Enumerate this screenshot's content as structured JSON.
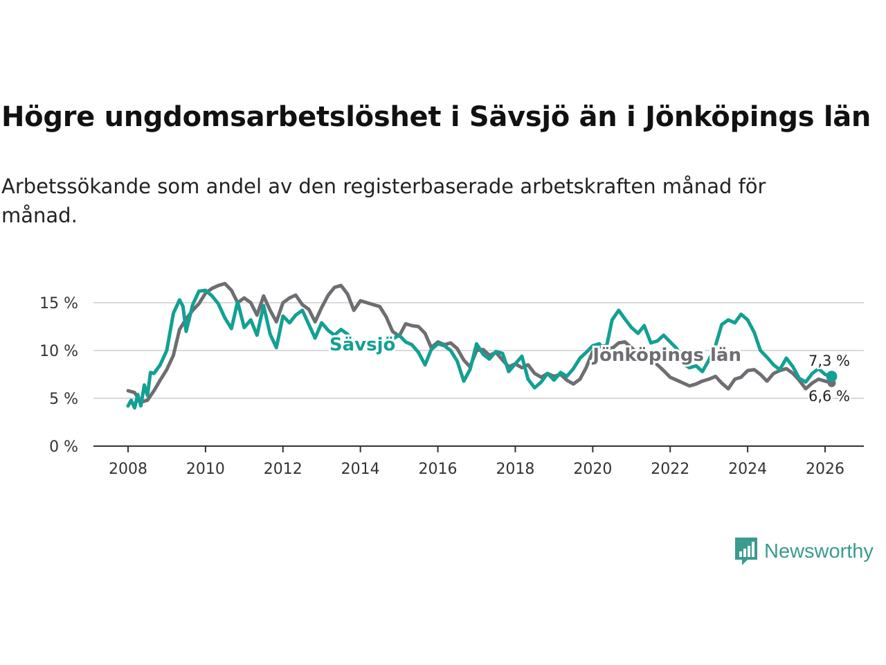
{
  "title": "Högre ungdomsarbetslöshet i Sävsjö än i Jönköpings län",
  "subtitle": "Arbetssökande som andel av den registerbaserade arbetskraften månad för månad.",
  "brand": {
    "name": "Newsworthy",
    "color": "#3a9b8e",
    "icon": "bar-chart-icon"
  },
  "chart_data": {
    "type": "line",
    "xlim": [
      2008,
      2026.6
    ],
    "ylim": [
      0,
      17.5
    ],
    "x_ticks": [
      2008,
      2010,
      2012,
      2014,
      2016,
      2018,
      2020,
      2022,
      2024,
      2026
    ],
    "x_tick_labels": [
      "2008",
      "2010",
      "2012",
      "2014",
      "2016",
      "2018",
      "2020",
      "2022",
      "2024",
      "2026"
    ],
    "y_ticks": [
      0,
      5,
      10,
      15
    ],
    "y_tick_labels": [
      "0 %",
      "5 %",
      "10 %",
      "15 %"
    ],
    "grid": true,
    "series": [
      {
        "name": "Jönköpings län",
        "color": "#6e6d72",
        "end_label": "6,6 %",
        "points": [
          [
            2008.0,
            5.8
          ],
          [
            2008.17,
            5.6
          ],
          [
            2008.33,
            4.6
          ],
          [
            2008.5,
            4.8
          ],
          [
            2008.67,
            5.8
          ],
          [
            2008.83,
            6.9
          ],
          [
            2009.0,
            8.0
          ],
          [
            2009.17,
            9.5
          ],
          [
            2009.33,
            12.2
          ],
          [
            2009.5,
            13.3
          ],
          [
            2009.67,
            14.2
          ],
          [
            2009.83,
            14.9
          ],
          [
            2010.0,
            16.0
          ],
          [
            2010.17,
            16.5
          ],
          [
            2010.33,
            16.8
          ],
          [
            2010.5,
            17.0
          ],
          [
            2010.67,
            16.3
          ],
          [
            2010.83,
            15.0
          ],
          [
            2011.0,
            15.5
          ],
          [
            2011.17,
            15.0
          ],
          [
            2011.33,
            13.7
          ],
          [
            2011.5,
            15.7
          ],
          [
            2011.67,
            14.2
          ],
          [
            2011.83,
            13.0
          ],
          [
            2012.0,
            15.0
          ],
          [
            2012.17,
            15.5
          ],
          [
            2012.33,
            15.8
          ],
          [
            2012.5,
            14.8
          ],
          [
            2012.67,
            14.3
          ],
          [
            2012.83,
            13.0
          ],
          [
            2013.0,
            14.5
          ],
          [
            2013.17,
            15.8
          ],
          [
            2013.33,
            16.6
          ],
          [
            2013.5,
            16.8
          ],
          [
            2013.67,
            15.9
          ],
          [
            2013.83,
            14.2
          ],
          [
            2014.0,
            15.2
          ],
          [
            2014.17,
            15.0
          ],
          [
            2014.33,
            14.8
          ],
          [
            2014.5,
            14.6
          ],
          [
            2014.67,
            13.5
          ],
          [
            2014.83,
            12.0
          ],
          [
            2015.0,
            11.5
          ],
          [
            2015.17,
            12.8
          ],
          [
            2015.33,
            12.6
          ],
          [
            2015.5,
            12.5
          ],
          [
            2015.67,
            11.8
          ],
          [
            2015.83,
            10.3
          ],
          [
            2016.0,
            10.9
          ],
          [
            2016.17,
            10.6
          ],
          [
            2016.33,
            10.8
          ],
          [
            2016.5,
            10.2
          ],
          [
            2016.67,
            9.0
          ],
          [
            2016.83,
            8.3
          ],
          [
            2017.0,
            10.0
          ],
          [
            2017.17,
            10.1
          ],
          [
            2017.33,
            9.5
          ],
          [
            2017.5,
            9.8
          ],
          [
            2017.67,
            9.0
          ],
          [
            2017.83,
            8.3
          ],
          [
            2018.0,
            8.6
          ],
          [
            2018.17,
            8.2
          ],
          [
            2018.33,
            8.5
          ],
          [
            2018.5,
            7.6
          ],
          [
            2018.67,
            7.2
          ],
          [
            2018.83,
            7.6
          ],
          [
            2019.0,
            7.3
          ],
          [
            2019.17,
            7.5
          ],
          [
            2019.33,
            6.9
          ],
          [
            2019.5,
            6.5
          ],
          [
            2019.67,
            7.0
          ],
          [
            2019.83,
            8.2
          ],
          [
            2020.0,
            9.9
          ],
          [
            2020.17,
            10.4
          ],
          [
            2020.33,
            10.5
          ],
          [
            2020.5,
            10.2
          ],
          [
            2020.67,
            10.8
          ],
          [
            2020.83,
            10.9
          ],
          [
            2021.0,
            10.3
          ],
          [
            2021.17,
            9.6
          ],
          [
            2021.33,
            9.4
          ],
          [
            2021.5,
            9.1
          ],
          [
            2021.67,
            8.5
          ],
          [
            2021.83,
            7.9
          ],
          [
            2022.0,
            7.2
          ],
          [
            2022.17,
            6.9
          ],
          [
            2022.33,
            6.6
          ],
          [
            2022.5,
            6.3
          ],
          [
            2022.67,
            6.5
          ],
          [
            2022.83,
            6.8
          ],
          [
            2023.0,
            7.0
          ],
          [
            2023.17,
            7.3
          ],
          [
            2023.33,
            6.6
          ],
          [
            2023.5,
            6.0
          ],
          [
            2023.67,
            7.0
          ],
          [
            2023.83,
            7.2
          ],
          [
            2024.0,
            7.9
          ],
          [
            2024.17,
            8.0
          ],
          [
            2024.33,
            7.5
          ],
          [
            2024.5,
            6.8
          ],
          [
            2024.67,
            7.6
          ],
          [
            2024.83,
            7.9
          ],
          [
            2025.0,
            8.1
          ],
          [
            2025.17,
            7.6
          ],
          [
            2025.33,
            6.9
          ],
          [
            2025.5,
            6.0
          ],
          [
            2025.67,
            6.6
          ],
          [
            2025.83,
            7.0
          ],
          [
            2026.0,
            6.8
          ],
          [
            2026.17,
            6.6
          ]
        ]
      },
      {
        "name": "Sävsjö",
        "color": "#13a093",
        "end_label": "7,3 %",
        "points": [
          [
            2008.0,
            4.2
          ],
          [
            2008.08,
            4.8
          ],
          [
            2008.17,
            4.0
          ],
          [
            2008.25,
            5.4
          ],
          [
            2008.33,
            4.2
          ],
          [
            2008.42,
            6.4
          ],
          [
            2008.5,
            5.3
          ],
          [
            2008.58,
            7.7
          ],
          [
            2008.67,
            7.6
          ],
          [
            2008.83,
            8.5
          ],
          [
            2009.0,
            10.0
          ],
          [
            2009.17,
            13.9
          ],
          [
            2009.33,
            15.3
          ],
          [
            2009.42,
            14.6
          ],
          [
            2009.5,
            12.0
          ],
          [
            2009.67,
            14.8
          ],
          [
            2009.83,
            16.2
          ],
          [
            2010.0,
            16.3
          ],
          [
            2010.17,
            15.7
          ],
          [
            2010.33,
            14.9
          ],
          [
            2010.5,
            13.4
          ],
          [
            2010.67,
            12.3
          ],
          [
            2010.83,
            15.1
          ],
          [
            2011.0,
            12.4
          ],
          [
            2011.17,
            13.2
          ],
          [
            2011.33,
            11.6
          ],
          [
            2011.5,
            14.7
          ],
          [
            2011.67,
            11.7
          ],
          [
            2011.83,
            10.3
          ],
          [
            2012.0,
            13.6
          ],
          [
            2012.17,
            12.9
          ],
          [
            2012.33,
            13.7
          ],
          [
            2012.5,
            14.2
          ],
          [
            2012.67,
            12.7
          ],
          [
            2012.83,
            11.3
          ],
          [
            2013.0,
            12.9
          ],
          [
            2013.17,
            12.1
          ],
          [
            2013.33,
            11.6
          ],
          [
            2013.5,
            12.2
          ],
          [
            2013.67,
            11.7
          ],
          [
            2013.83,
            11.0
          ],
          [
            2014.0,
            10.5
          ],
          [
            2014.17,
            10.4
          ],
          [
            2014.33,
            10.2
          ],
          [
            2014.5,
            10.6
          ],
          [
            2014.67,
            10.8
          ],
          [
            2014.83,
            11.2
          ],
          [
            2015.0,
            11.6
          ],
          [
            2015.17,
            10.9
          ],
          [
            2015.33,
            10.6
          ],
          [
            2015.5,
            9.8
          ],
          [
            2015.67,
            8.5
          ],
          [
            2015.83,
            10.1
          ],
          [
            2016.0,
            10.7
          ],
          [
            2016.17,
            10.5
          ],
          [
            2016.33,
            10.0
          ],
          [
            2016.5,
            8.9
          ],
          [
            2016.67,
            6.8
          ],
          [
            2016.83,
            8.0
          ],
          [
            2017.0,
            10.7
          ],
          [
            2017.17,
            9.6
          ],
          [
            2017.33,
            9.1
          ],
          [
            2017.5,
            9.9
          ],
          [
            2017.67,
            9.7
          ],
          [
            2017.83,
            7.8
          ],
          [
            2018.0,
            8.6
          ],
          [
            2018.17,
            9.4
          ],
          [
            2018.33,
            7.0
          ],
          [
            2018.5,
            6.1
          ],
          [
            2018.67,
            6.7
          ],
          [
            2018.83,
            7.6
          ],
          [
            2019.0,
            6.9
          ],
          [
            2019.17,
            7.7
          ],
          [
            2019.33,
            7.3
          ],
          [
            2019.5,
            8.1
          ],
          [
            2019.67,
            9.2
          ],
          [
            2019.83,
            9.8
          ],
          [
            2020.0,
            10.5
          ],
          [
            2020.17,
            10.7
          ],
          [
            2020.33,
            9.9
          ],
          [
            2020.5,
            13.2
          ],
          [
            2020.67,
            14.2
          ],
          [
            2020.83,
            13.3
          ],
          [
            2021.0,
            12.4
          ],
          [
            2021.17,
            11.8
          ],
          [
            2021.33,
            12.6
          ],
          [
            2021.5,
            10.8
          ],
          [
            2021.67,
            11.0
          ],
          [
            2021.83,
            11.6
          ],
          [
            2022.0,
            10.9
          ],
          [
            2022.17,
            10.2
          ],
          [
            2022.33,
            8.6
          ],
          [
            2022.5,
            8.2
          ],
          [
            2022.67,
            8.4
          ],
          [
            2022.83,
            7.8
          ],
          [
            2023.0,
            9.0
          ],
          [
            2023.17,
            10.5
          ],
          [
            2023.33,
            12.7
          ],
          [
            2023.5,
            13.2
          ],
          [
            2023.67,
            12.9
          ],
          [
            2023.83,
            13.8
          ],
          [
            2024.0,
            13.2
          ],
          [
            2024.17,
            11.9
          ],
          [
            2024.33,
            10.0
          ],
          [
            2024.5,
            9.3
          ],
          [
            2024.67,
            8.5
          ],
          [
            2024.83,
            8.0
          ],
          [
            2025.0,
            9.2
          ],
          [
            2025.17,
            8.3
          ],
          [
            2025.33,
            7.1
          ],
          [
            2025.5,
            6.7
          ],
          [
            2025.67,
            7.6
          ],
          [
            2025.83,
            8.1
          ],
          [
            2026.0,
            7.5
          ],
          [
            2026.17,
            7.3
          ]
        ]
      }
    ],
    "annotations": [
      {
        "text": "Sävsjö",
        "series": "Sävsjö",
        "x": 2013.2,
        "y": 10.0
      },
      {
        "text": "Jönköpings län",
        "series": "Jönköpings län",
        "x": 2020.0,
        "y": 8.9
      }
    ]
  }
}
